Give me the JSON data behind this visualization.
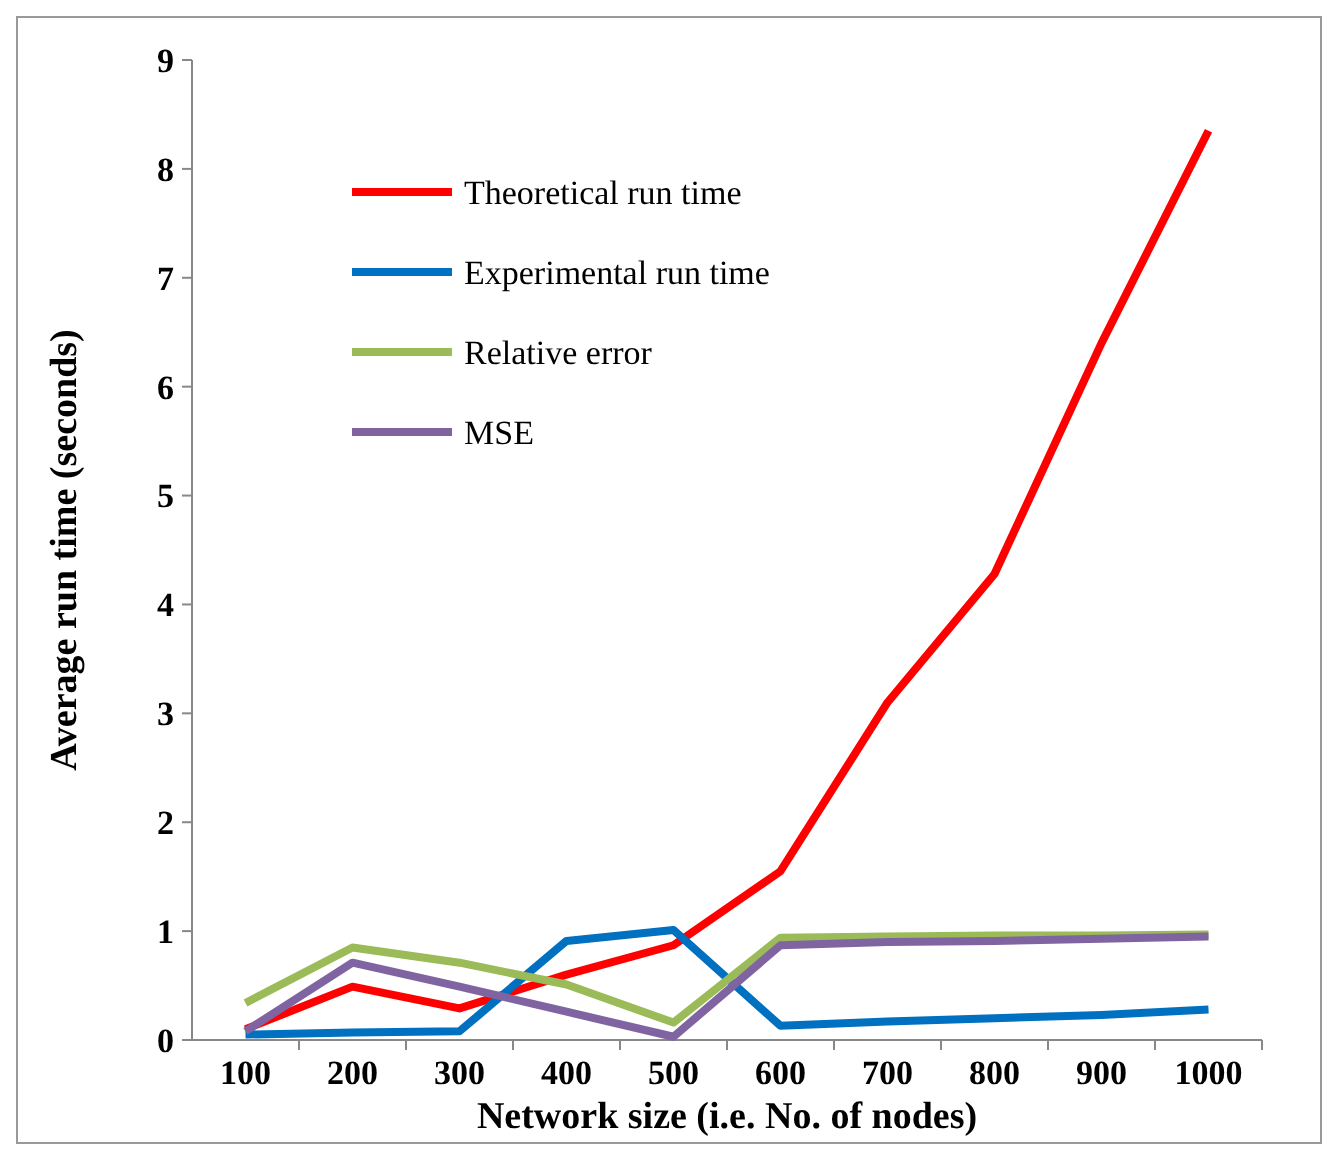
{
  "chart_data": {
    "type": "line",
    "xlabel": "Network size (i.e. No. of nodes)",
    "ylabel": "Average run time (seconds)",
    "categories": [
      "100",
      "200",
      "300",
      "400",
      "500",
      "600",
      "700",
      "800",
      "900",
      "1000"
    ],
    "ylim": [
      0,
      9
    ],
    "yticks": [
      0,
      1,
      2,
      3,
      4,
      5,
      6,
      7,
      8,
      9
    ],
    "legend": "top left",
    "grid": false,
    "marker": "none",
    "line_style": "solid",
    "series": [
      {
        "name": "Theoretical run time",
        "color": "#ff0000",
        "values": [
          0.1,
          0.49,
          0.29,
          0.6,
          0.87,
          1.55,
          3.1,
          4.28,
          6.4,
          8.35
        ]
      },
      {
        "name": "Experimental run time",
        "color": "#0070c0",
        "values": [
          0.05,
          0.07,
          0.08,
          0.91,
          1.01,
          0.13,
          0.17,
          0.2,
          0.23,
          0.28
        ]
      },
      {
        "name": "Relative error",
        "color": "#9bbb59",
        "values": [
          0.34,
          0.85,
          0.71,
          0.51,
          0.16,
          0.94,
          0.95,
          0.96,
          0.96,
          0.97
        ]
      },
      {
        "name": "MSE",
        "color": "#8064a2",
        "values": [
          0.08,
          0.71,
          0.49,
          0.26,
          0.03,
          0.87,
          0.9,
          0.91,
          0.93,
          0.95
        ]
      }
    ]
  }
}
